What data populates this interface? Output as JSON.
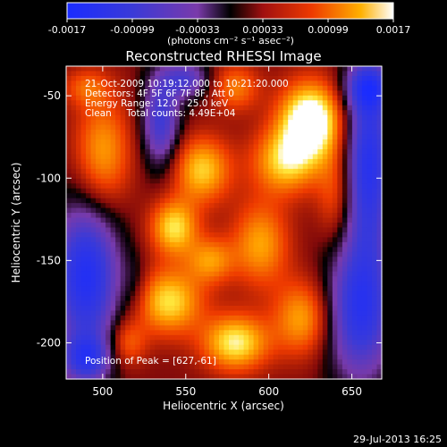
{
  "chart_data": {
    "type": "heatmap",
    "title": "Reconstructed RHESSI Image",
    "xlabel": "Heliocentric X (arcsec)",
    "ylabel": "Heliocentric Y (arcsec)",
    "xlim": [
      478,
      668
    ],
    "ylim": [
      -222,
      -32
    ],
    "xticks": [
      500,
      550,
      600,
      650
    ],
    "yticks": [
      -50,
      -100,
      -150,
      -200
    ],
    "colorbar": {
      "range": [
        -0.0017,
        0.0017
      ],
      "ticks": [
        "-0.0017",
        "-0.00099",
        "-0.00033",
        "0.00033",
        "0.00099",
        "0.0017"
      ],
      "label": "(photons cm⁻² s⁻¹ asec⁻²)"
    },
    "annotations": [
      "21-Oct-2009 10:19:12.000 to 10:21:20.000",
      "Detectors: 4F 5F 6F 7F 8F, Att 0",
      "Energy Range: 12.0 - 25.0 keV",
      "Clean     Total counts: 4.49E+04"
    ],
    "peak_label": "Position of Peak = [627,-61]",
    "peak": [
      627,
      -61
    ],
    "blobs": [
      {
        "x": 625,
        "y": -65,
        "sx": 13,
        "sy": 16,
        "v": 0.0019
      },
      {
        "x": 610,
        "y": -90,
        "sx": 14,
        "sy": 14,
        "v": 0.0012
      },
      {
        "x": 560,
        "y": -95,
        "sx": 12,
        "sy": 14,
        "v": 0.0012
      },
      {
        "x": 543,
        "y": -130,
        "sx": 10,
        "sy": 12,
        "v": 0.0013
      },
      {
        "x": 540,
        "y": -175,
        "sx": 14,
        "sy": 14,
        "v": 0.0013
      },
      {
        "x": 580,
        "y": -200,
        "sx": 14,
        "sy": 12,
        "v": 0.0014
      },
      {
        "x": 500,
        "y": -85,
        "sx": 12,
        "sy": 24,
        "v": 0.001
      },
      {
        "x": 490,
        "y": -45,
        "sx": 10,
        "sy": 8,
        "v": 0.0006
      },
      {
        "x": 595,
        "y": -140,
        "sx": 12,
        "sy": 18,
        "v": 0.001
      },
      {
        "x": 580,
        "y": -45,
        "sx": 10,
        "sy": 10,
        "v": 0.0008
      },
      {
        "x": 620,
        "y": -185,
        "sx": 12,
        "sy": 16,
        "v": 0.001
      },
      {
        "x": 565,
        "y": -150,
        "sx": 10,
        "sy": 10,
        "v": 0.0009
      },
      {
        "x": 515,
        "y": -200,
        "sx": 8,
        "sy": 10,
        "v": 0.0007
      },
      {
        "x": 640,
        "y": -110,
        "sx": 8,
        "sy": 20,
        "v": 0.0006
      },
      {
        "x": 490,
        "y": -160,
        "sx": 14,
        "sy": 32,
        "v": -0.0017
      },
      {
        "x": 490,
        "y": -210,
        "sx": 10,
        "sy": 10,
        "v": -0.0012
      },
      {
        "x": 535,
        "y": -65,
        "sx": 8,
        "sy": 20,
        "v": -0.0012
      },
      {
        "x": 550,
        "y": -40,
        "sx": 10,
        "sy": 8,
        "v": -0.001
      },
      {
        "x": 660,
        "y": -90,
        "sx": 10,
        "sy": 40,
        "v": -0.0016
      },
      {
        "x": 655,
        "y": -180,
        "sx": 14,
        "sy": 30,
        "v": -0.0015
      },
      {
        "x": 660,
        "y": -45,
        "sx": 10,
        "sy": 10,
        "v": -0.0011
      },
      {
        "x": 520,
        "y": -165,
        "sx": 6,
        "sy": 12,
        "v": -0.0003
      }
    ]
  },
  "footer": {
    "date": "29-Jul-2013 16:25"
  }
}
